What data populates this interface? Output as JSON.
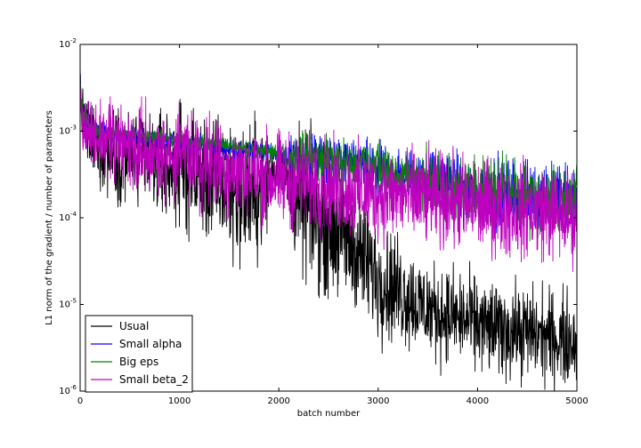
{
  "chart_data": {
    "type": "line",
    "title": "",
    "xlabel": "batch number",
    "ylabel": "L1 norm of the gradient / number of parameters",
    "xlim": [
      0,
      5000
    ],
    "ylim": [
      1e-06,
      0.01
    ],
    "yscale": "log",
    "grid": false,
    "legend_position": "lower-left",
    "x_ticks": [
      0,
      1000,
      2000,
      3000,
      4000,
      5000
    ],
    "y_ticks": [
      {
        "value": 1e-06,
        "base": "10",
        "exp": "-6"
      },
      {
        "value": 1e-05,
        "base": "10",
        "exp": "-5"
      },
      {
        "value": 0.0001,
        "base": "10",
        "exp": "-4"
      },
      {
        "value": 0.001,
        "base": "10",
        "exp": "-3"
      },
      {
        "value": 0.01,
        "base": "10",
        "exp": "-2"
      }
    ],
    "series": [
      {
        "name": "Usual",
        "color": "#000000",
        "x": [
          0,
          10,
          30,
          60,
          100,
          200,
          400,
          600,
          800,
          1000,
          1200,
          1400,
          1600,
          1800,
          2000,
          2200,
          2400,
          2600,
          2800,
          3000,
          3200,
          3400,
          3600,
          3800,
          4000,
          4200,
          4400,
          4600,
          4800,
          5000
        ],
        "y_mid": [
          0.005,
          0.002,
          0.0012,
          0.001,
          0.0008,
          0.00065,
          0.00055,
          0.0005,
          0.0004,
          0.00035,
          0.0003,
          0.00025,
          0.0002,
          0.0002,
          0.0004,
          0.00015,
          0.0001,
          7e-05,
          4e-05,
          2e-05,
          1.5e-05,
          1e-05,
          8e-06,
          7e-06,
          6e-06,
          5e-06,
          5e-06,
          4.5e-06,
          4e-06,
          4e-06
        ],
        "spread": [
          0.1,
          0.25,
          0.4,
          0.45,
          0.5,
          0.55,
          0.6,
          0.65,
          0.7,
          0.75,
          0.8,
          0.85,
          0.9,
          0.9,
          0.25,
          0.9,
          0.9,
          0.85,
          0.8,
          0.75,
          0.7,
          0.65,
          0.6,
          0.6,
          0.6,
          0.6,
          0.6,
          0.6,
          0.6,
          0.6
        ]
      },
      {
        "name": "Small alpha",
        "color": "#0000ff",
        "x": [
          0,
          10,
          30,
          60,
          100,
          200,
          400,
          600,
          800,
          1000,
          1200,
          1400,
          1600,
          1800,
          2000,
          2200,
          2400,
          2600,
          2800,
          3000,
          3200,
          3400,
          3600,
          3800,
          4000,
          4200,
          4400,
          4600,
          4800,
          5000
        ],
        "y_mid": [
          0.005,
          0.0022,
          0.0015,
          0.0012,
          0.0011,
          0.00095,
          0.0009,
          0.00085,
          0.0008,
          0.00075,
          0.0007,
          0.00065,
          0.0006,
          0.0006,
          0.00055,
          0.0005,
          0.00048,
          0.00045,
          0.0004,
          0.00035,
          0.0003,
          0.00028,
          0.00025,
          0.00022,
          0.0002,
          0.0002,
          0.00018,
          0.00018,
          0.00017,
          0.00016
        ],
        "spread": [
          0.1,
          0.15,
          0.15,
          0.15,
          0.15,
          0.12,
          0.12,
          0.12,
          0.12,
          0.12,
          0.12,
          0.12,
          0.12,
          0.12,
          0.12,
          0.3,
          0.3,
          0.3,
          0.3,
          0.35,
          0.35,
          0.35,
          0.4,
          0.4,
          0.4,
          0.45,
          0.45,
          0.45,
          0.45,
          0.45
        ]
      },
      {
        "name": "Big eps",
        "color": "#008000",
        "x": [
          0,
          10,
          30,
          60,
          100,
          200,
          400,
          600,
          800,
          1000,
          1200,
          1400,
          1600,
          1800,
          2000,
          2200,
          2400,
          2600,
          2800,
          3000,
          3200,
          3400,
          3600,
          3800,
          4000,
          4200,
          4400,
          4600,
          4800,
          5000
        ],
        "y_mid": [
          0.005,
          0.0025,
          0.0016,
          0.0013,
          0.0012,
          0.001,
          0.00095,
          0.0009,
          0.00085,
          0.0008,
          0.00075,
          0.0007,
          0.00065,
          0.0006,
          0.00055,
          0.0005,
          0.00048,
          0.00045,
          0.0004,
          0.00035,
          0.0003,
          0.00028,
          0.00025,
          0.00022,
          0.0002,
          0.0002,
          0.00018,
          0.00018,
          0.00017,
          0.00016
        ],
        "spread": [
          0.1,
          0.12,
          0.12,
          0.12,
          0.12,
          0.1,
          0.1,
          0.1,
          0.1,
          0.1,
          0.1,
          0.1,
          0.1,
          0.1,
          0.1,
          0.3,
          0.3,
          0.3,
          0.3,
          0.35,
          0.35,
          0.35,
          0.4,
          0.4,
          0.4,
          0.45,
          0.45,
          0.45,
          0.45,
          0.45
        ]
      },
      {
        "name": "Small beta_2",
        "color": "#bf00bf",
        "x": [
          0,
          10,
          30,
          60,
          100,
          200,
          400,
          600,
          800,
          1000,
          1200,
          1400,
          1600,
          1800,
          2000,
          2200,
          2400,
          2600,
          2800,
          3000,
          3200,
          3400,
          3600,
          3800,
          4000,
          4200,
          4400,
          4600,
          4800,
          5000
        ],
        "y_mid": [
          0.005,
          0.0015,
          0.0011,
          0.001,
          0.0009,
          0.0008,
          0.0007,
          0.0006,
          0.00055,
          0.0005,
          0.00045,
          0.0004,
          0.00035,
          0.0003,
          0.00028,
          0.00026,
          0.00024,
          0.00022,
          0.0002,
          0.00019,
          0.00018,
          0.00017,
          0.00016,
          0.00015,
          0.00014,
          0.00013,
          0.00012,
          0.00012,
          0.00011,
          0.0001
        ],
        "spread": [
          0.1,
          0.2,
          0.3,
          0.35,
          0.4,
          0.45,
          0.5,
          0.55,
          0.55,
          0.6,
          0.6,
          0.6,
          0.6,
          0.6,
          0.6,
          0.6,
          0.6,
          0.6,
          0.6,
          0.6,
          0.6,
          0.6,
          0.6,
          0.6,
          0.6,
          0.6,
          0.6,
          0.6,
          0.6,
          0.6
        ]
      }
    ]
  }
}
